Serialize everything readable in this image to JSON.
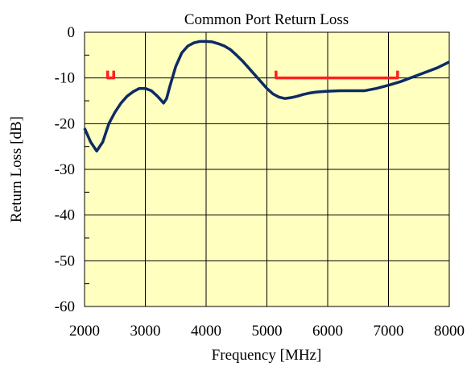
{
  "chart_data": {
    "type": "line",
    "title": "Common Port Return Loss",
    "x_label": "Frequency [MHz]",
    "y_label": "Return Loss [dB]",
    "xlim": [
      2000,
      8000
    ],
    "xticks": [
      2000,
      3000,
      4000,
      5000,
      6000,
      7000,
      8000
    ],
    "ylim": [
      -60,
      0
    ],
    "yticks": [
      -60,
      -50,
      -40,
      -30,
      -20,
      -10,
      0
    ],
    "grid": true,
    "background": "#ffffc0",
    "series": [
      {
        "color": "#0d2b63",
        "x": [
          2000,
          2100,
          2200,
          2300,
          2400,
          2500,
          2600,
          2700,
          2800,
          2900,
          3000,
          3100,
          3200,
          3300,
          3350,
          3400,
          3500,
          3600,
          3700,
          3800,
          3900,
          4000,
          4100,
          4200,
          4300,
          4400,
          4500,
          4600,
          4700,
          4800,
          4900,
          5000,
          5100,
          5200,
          5300,
          5400,
          5500,
          5600,
          5700,
          5800,
          5900,
          6000,
          6200,
          6400,
          6600,
          6800,
          7000,
          7200,
          7400,
          7600,
          7800,
          8000
        ],
        "values": [
          -21,
          -24,
          -26,
          -24,
          -20,
          -17.5,
          -15.5,
          -14,
          -13,
          -12.3,
          -12.3,
          -12.8,
          -14,
          -15.5,
          -14.5,
          -12,
          -7.5,
          -4.5,
          -3,
          -2.3,
          -2,
          -2,
          -2.1,
          -2.5,
          -3,
          -3.8,
          -5,
          -6.3,
          -7.8,
          -9.3,
          -10.8,
          -12.3,
          -13.5,
          -14.2,
          -14.5,
          -14.3,
          -14,
          -13.6,
          -13.3,
          -13.1,
          -13,
          -12.9,
          -12.8,
          -12.8,
          -12.8,
          -12.3,
          -11.6,
          -10.8,
          -9.8,
          -8.8,
          -7.8,
          -6.5
        ]
      },
      {
        "color": "#ff2020",
        "bracket": true,
        "x": [
          2380,
          2480
        ],
        "values": [
          -10,
          -10
        ]
      },
      {
        "color": "#ff2020",
        "bracket": true,
        "x": [
          5150,
          7150
        ],
        "values": [
          -10,
          -10
        ]
      }
    ]
  }
}
